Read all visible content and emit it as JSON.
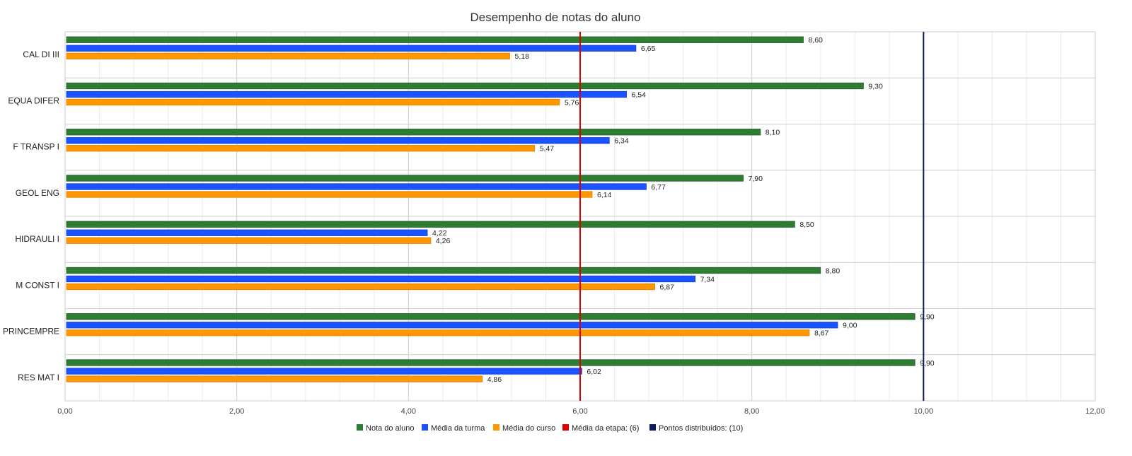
{
  "chart_data": {
    "type": "bar",
    "orientation": "horizontal",
    "title": "Desempenho de notas do aluno",
    "categories": [
      "CAL DI III",
      "EQUA DIFER",
      "F TRANSP I",
      "GEOL ENG",
      "HIDRAULI I",
      "M CONST I",
      "PRINCEMPRE",
      "RES MAT I"
    ],
    "series": [
      {
        "name": "Nota do aluno",
        "color": "#2e7d32",
        "values": [
          8.6,
          9.3,
          8.1,
          7.9,
          8.5,
          8.8,
          9.9,
          9.9
        ],
        "labels": [
          "8,60",
          "9,30",
          "8,10",
          "7,90",
          "8,50",
          "8,80",
          "9,90",
          "9,90"
        ]
      },
      {
        "name": "Média da turma",
        "color": "#1a53ff",
        "values": [
          6.65,
          6.54,
          6.34,
          6.77,
          4.22,
          7.34,
          9.0,
          6.02
        ],
        "labels": [
          "6,65",
          "6,54",
          "6,34",
          "6,77",
          "4,22",
          "7,34",
          "9,00",
          "6,02"
        ]
      },
      {
        "name": "Média do curso",
        "color": "#ff9800",
        "values": [
          5.18,
          5.76,
          5.47,
          6.14,
          4.26,
          6.87,
          8.67,
          4.86
        ],
        "labels": [
          "5,18",
          "5,76",
          "5,47",
          "6,14",
          "4,26",
          "6,87",
          "8,67",
          "4,86"
        ]
      }
    ],
    "reference_lines": [
      {
        "name": "Média da etapa: (6)",
        "value": 6,
        "color": "#e00000"
      },
      {
        "name": "Pontos distribuídos: (10)",
        "value": 10,
        "color": "#0d1b5e"
      }
    ],
    "xlim": [
      0,
      12
    ],
    "x_ticks": [
      0,
      2,
      4,
      6,
      8,
      10,
      12
    ],
    "x_tick_labels": [
      "0,00",
      "2,00",
      "4,00",
      "6,00",
      "8,00",
      "10,00",
      "12,00"
    ],
    "x_minor_step": 0.4,
    "grid": true,
    "legend_position": "bottom",
    "xlabel": "",
    "ylabel": ""
  }
}
